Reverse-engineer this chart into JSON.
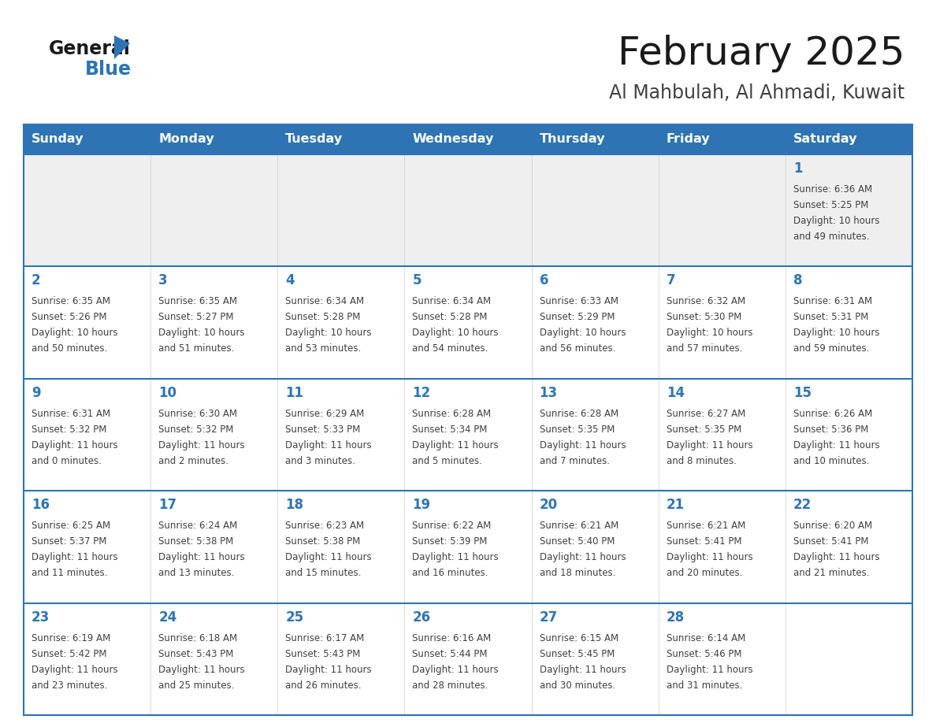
{
  "title": "February 2025",
  "subtitle": "Al Mahbulah, Al Ahmadi, Kuwait",
  "days_of_week": [
    "Sunday",
    "Monday",
    "Tuesday",
    "Wednesday",
    "Thursday",
    "Friday",
    "Saturday"
  ],
  "header_bg": "#2E74B5",
  "header_text": "#FFFFFF",
  "cell_bg_white": "#FFFFFF",
  "cell_bg_gray": "#EFEFEF",
  "day_number_color": "#2E74B5",
  "info_text_color": "#404040",
  "separator_color": "#2E74B5",
  "title_color": "#1a1a1a",
  "subtitle_color": "#404040",
  "calendar_data": [
    [
      null,
      null,
      null,
      null,
      null,
      null,
      1
    ],
    [
      2,
      3,
      4,
      5,
      6,
      7,
      8
    ],
    [
      9,
      10,
      11,
      12,
      13,
      14,
      15
    ],
    [
      16,
      17,
      18,
      19,
      20,
      21,
      22
    ],
    [
      23,
      24,
      25,
      26,
      27,
      28,
      null
    ]
  ],
  "sunrise_data": {
    "1": "6:36 AM",
    "2": "6:35 AM",
    "3": "6:35 AM",
    "4": "6:34 AM",
    "5": "6:34 AM",
    "6": "6:33 AM",
    "7": "6:32 AM",
    "8": "6:31 AM",
    "9": "6:31 AM",
    "10": "6:30 AM",
    "11": "6:29 AM",
    "12": "6:28 AM",
    "13": "6:28 AM",
    "14": "6:27 AM",
    "15": "6:26 AM",
    "16": "6:25 AM",
    "17": "6:24 AM",
    "18": "6:23 AM",
    "19": "6:22 AM",
    "20": "6:21 AM",
    "21": "6:21 AM",
    "22": "6:20 AM",
    "23": "6:19 AM",
    "24": "6:18 AM",
    "25": "6:17 AM",
    "26": "6:16 AM",
    "27": "6:15 AM",
    "28": "6:14 AM"
  },
  "sunset_data": {
    "1": "5:25 PM",
    "2": "5:26 PM",
    "3": "5:27 PM",
    "4": "5:28 PM",
    "5": "5:28 PM",
    "6": "5:29 PM",
    "7": "5:30 PM",
    "8": "5:31 PM",
    "9": "5:32 PM",
    "10": "5:32 PM",
    "11": "5:33 PM",
    "12": "5:34 PM",
    "13": "5:35 PM",
    "14": "5:35 PM",
    "15": "5:36 PM",
    "16": "5:37 PM",
    "17": "5:38 PM",
    "18": "5:38 PM",
    "19": "5:39 PM",
    "20": "5:40 PM",
    "21": "5:41 PM",
    "22": "5:41 PM",
    "23": "5:42 PM",
    "24": "5:43 PM",
    "25": "5:43 PM",
    "26": "5:44 PM",
    "27": "5:45 PM",
    "28": "5:46 PM"
  },
  "daylight_data": {
    "1": [
      "10 hours",
      "and 49 minutes."
    ],
    "2": [
      "10 hours",
      "and 50 minutes."
    ],
    "3": [
      "10 hours",
      "and 51 minutes."
    ],
    "4": [
      "10 hours",
      "and 53 minutes."
    ],
    "5": [
      "10 hours",
      "and 54 minutes."
    ],
    "6": [
      "10 hours",
      "and 56 minutes."
    ],
    "7": [
      "10 hours",
      "and 57 minutes."
    ],
    "8": [
      "10 hours",
      "and 59 minutes."
    ],
    "9": [
      "11 hours",
      "and 0 minutes."
    ],
    "10": [
      "11 hours",
      "and 2 minutes."
    ],
    "11": [
      "11 hours",
      "and 3 minutes."
    ],
    "12": [
      "11 hours",
      "and 5 minutes."
    ],
    "13": [
      "11 hours",
      "and 7 minutes."
    ],
    "14": [
      "11 hours",
      "and 8 minutes."
    ],
    "15": [
      "11 hours",
      "and 10 minutes."
    ],
    "16": [
      "11 hours",
      "and 11 minutes."
    ],
    "17": [
      "11 hours",
      "and 13 minutes."
    ],
    "18": [
      "11 hours",
      "and 15 minutes."
    ],
    "19": [
      "11 hours",
      "and 16 minutes."
    ],
    "20": [
      "11 hours",
      "and 18 minutes."
    ],
    "21": [
      "11 hours",
      "and 20 minutes."
    ],
    "22": [
      "11 hours",
      "and 21 minutes."
    ],
    "23": [
      "11 hours",
      "and 23 minutes."
    ],
    "24": [
      "11 hours",
      "and 25 minutes."
    ],
    "25": [
      "11 hours",
      "and 26 minutes."
    ],
    "26": [
      "11 hours",
      "and 28 minutes."
    ],
    "27": [
      "11 hours",
      "and 30 minutes."
    ],
    "28": [
      "11 hours",
      "and 31 minutes."
    ]
  }
}
